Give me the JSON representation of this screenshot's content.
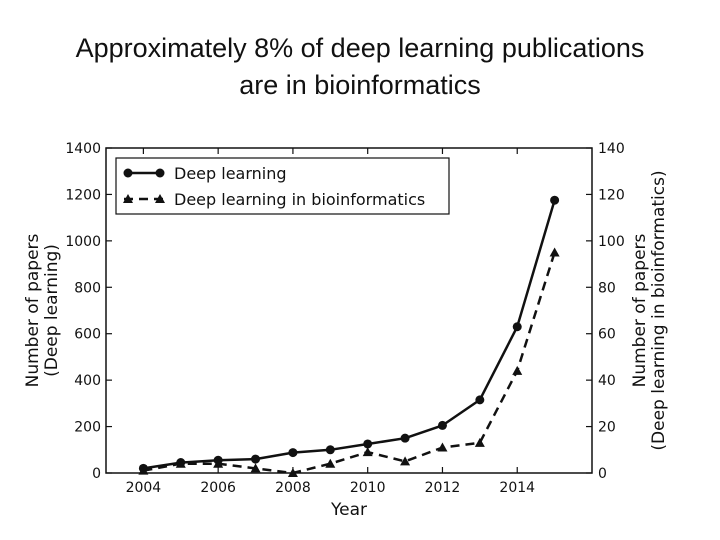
{
  "slide": {
    "title_line1": "Approximately 8% of deep learning publications",
    "title_line2": "are in bioinformatics"
  },
  "chart_data": {
    "type": "line",
    "x": [
      2004,
      2005,
      2006,
      2007,
      2008,
      2009,
      2010,
      2011,
      2012,
      2013,
      2014,
      2015
    ],
    "xlabel": "Year",
    "ylabel_left": [
      "Number of papers",
      "(Deep learning)"
    ],
    "ylabel_right": [
      "Number of papers",
      "(Deep learning in bioinformatics)"
    ],
    "xlim": [
      2003,
      2016
    ],
    "ylim_left": [
      0,
      1400
    ],
    "ylim_right": [
      0,
      140
    ],
    "xticks": [
      "2004",
      "2006",
      "2008",
      "2010",
      "2012",
      "2014"
    ],
    "yticks_left": [
      "0",
      "200",
      "400",
      "600",
      "800",
      "1000",
      "1200",
      "1400"
    ],
    "yticks_right": [
      "0",
      "20",
      "40",
      "60",
      "80",
      "100",
      "120",
      "140"
    ],
    "legend_position": "top-left",
    "series": [
      {
        "name": "Deep learning",
        "axis": "left",
        "style": "solid",
        "marker": "circle",
        "color": "#111111",
        "values": [
          20,
          45,
          55,
          60,
          88,
          100,
          125,
          150,
          205,
          315,
          630,
          1175
        ]
      },
      {
        "name": "Deep learning in bioinformatics",
        "axis": "right",
        "style": "dashed",
        "marker": "triangle",
        "color": "#111111",
        "values": [
          1,
          4,
          4,
          2,
          0,
          4,
          9,
          5,
          11,
          13,
          44,
          95
        ]
      }
    ]
  }
}
